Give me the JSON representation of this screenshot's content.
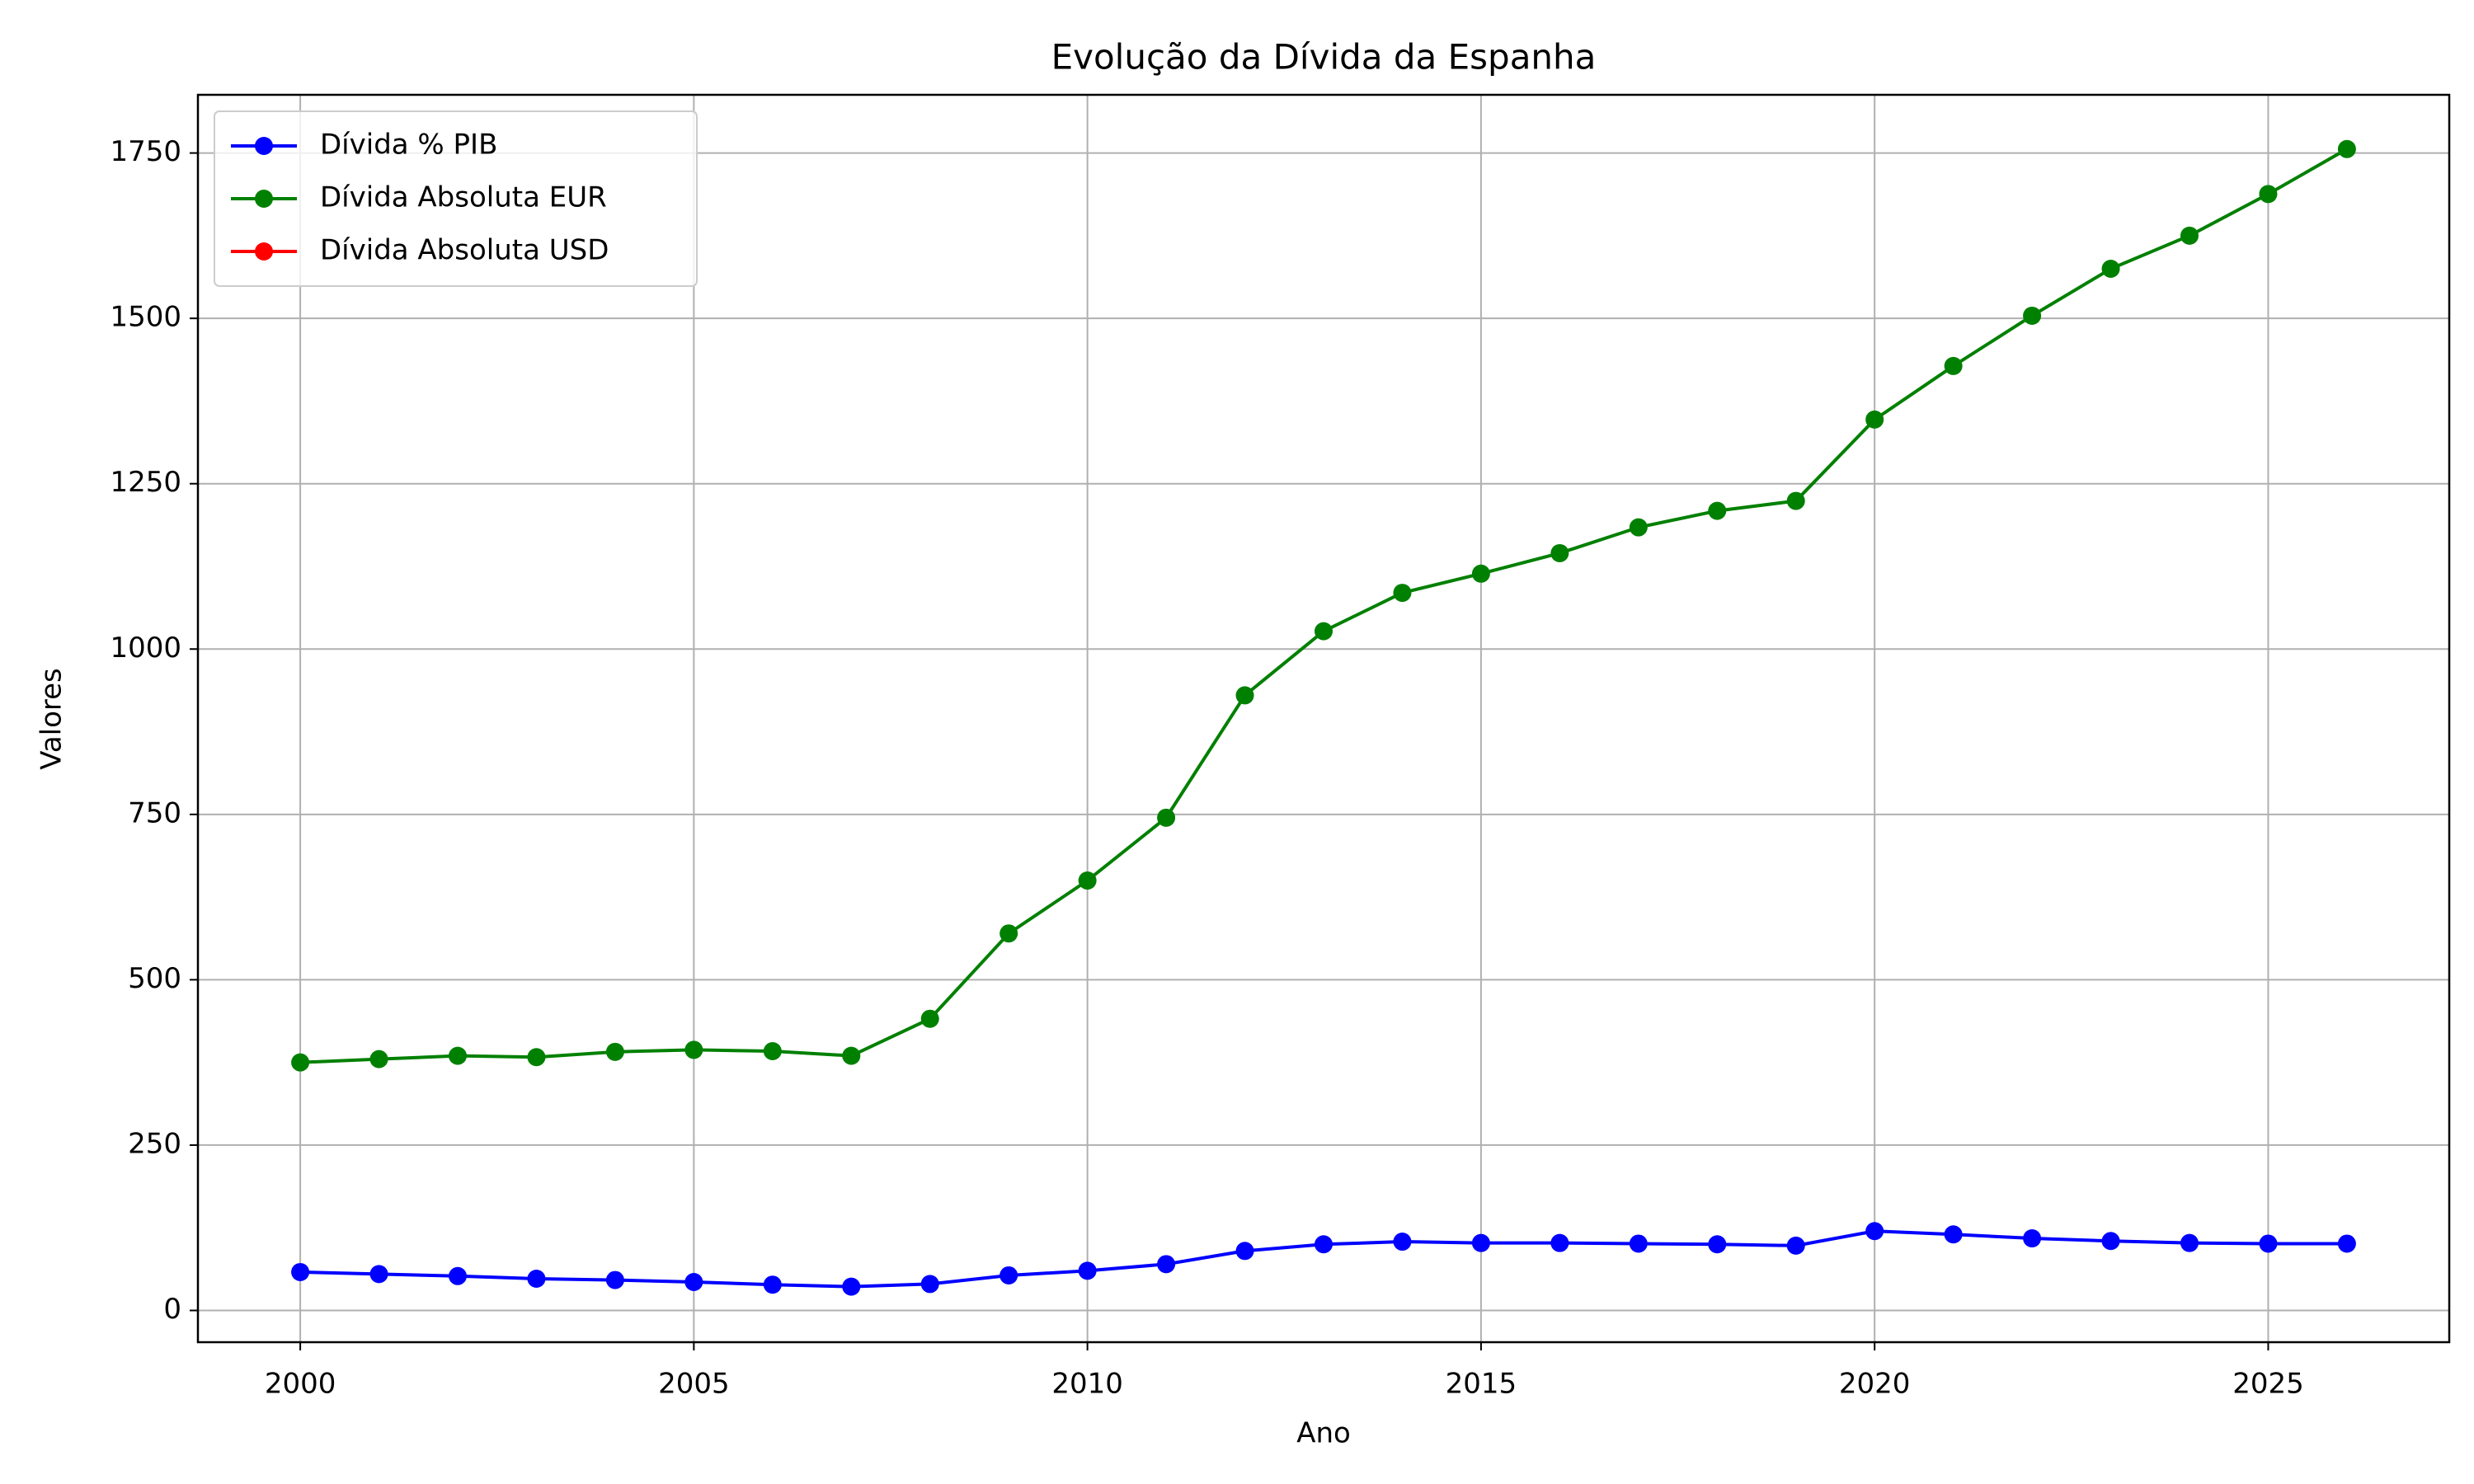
{
  "chart_data": {
    "type": "line",
    "title": "Evolução da Dívida da Espanha",
    "xlabel": "Ano",
    "ylabel": "Valores",
    "x": [
      2000,
      2001,
      2002,
      2003,
      2004,
      2005,
      2006,
      2007,
      2008,
      2009,
      2010,
      2011,
      2012,
      2013,
      2014,
      2015,
      2016,
      2017,
      2018,
      2019,
      2020,
      2021,
      2022,
      2023,
      2024,
      2025,
      2026
    ],
    "series": [
      {
        "name": "Dívida % PIB",
        "color": "#0000ff",
        "values": [
          58,
          55,
          52,
          48,
          46,
          43,
          39,
          36,
          40,
          53,
          60,
          70,
          90,
          100,
          104,
          102,
          102,
          101,
          100,
          98,
          120,
          115,
          109,
          105,
          102,
          101,
          101
        ]
      },
      {
        "name": "Dívida Absoluta EUR",
        "color": "#008000",
        "values": [
          375,
          380,
          385,
          383,
          391,
          394,
          392,
          385,
          441,
          570,
          650,
          745,
          930,
          1027,
          1085,
          1114,
          1145,
          1184,
          1209,
          1224,
          1347,
          1428,
          1504,
          1575,
          1625,
          1688,
          1756
        ]
      },
      {
        "name": "Dívida Absoluta USD",
        "color": "#ff0000",
        "values": [
          null,
          null,
          null,
          null,
          null,
          null,
          null,
          null,
          null,
          null,
          null,
          null,
          null,
          null,
          null,
          null,
          null,
          null,
          null,
          null,
          null,
          null,
          null,
          null,
          null,
          null,
          null
        ]
      }
    ],
    "xlim": [
      1998.7,
      2027.3
    ],
    "xticks": [
      2000,
      2005,
      2010,
      2015,
      2020,
      2025
    ],
    "ylim": [
      -48,
      1838
    ],
    "yticks": [
      0,
      250,
      500,
      750,
      1000,
      1250,
      1500,
      1750
    ],
    "grid": true,
    "legend": "upper left"
  }
}
